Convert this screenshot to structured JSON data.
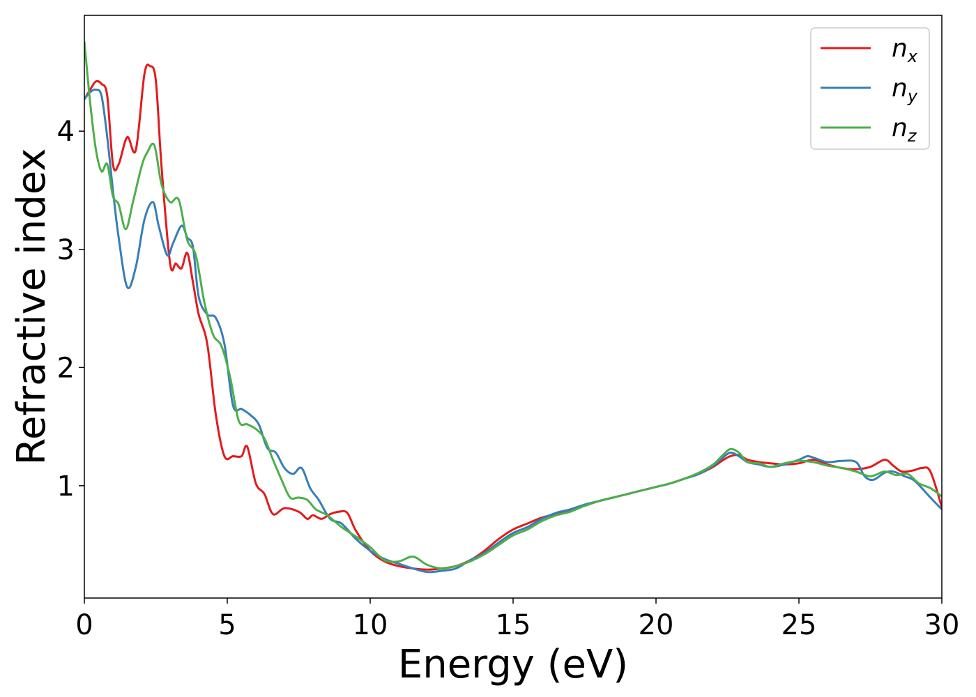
{
  "chart_data": {
    "type": "line",
    "title": "",
    "xlabel": "Energy (eV)",
    "ylabel": "Refractive index",
    "xlim": [
      0,
      30
    ],
    "ylim": [
      0.05,
      4.98
    ],
    "xticks": [
      0,
      5,
      10,
      15,
      20,
      25,
      30
    ],
    "xtick_labels": [
      "0",
      "5",
      "10",
      "15",
      "20",
      "25",
      "30"
    ],
    "yticks": [
      1,
      2,
      3,
      4
    ],
    "ytick_labels": [
      "1",
      "2",
      "3",
      "4"
    ],
    "grid": false,
    "legend_position": "top-right",
    "series": [
      {
        "name": "n",
        "subscript": "x",
        "color": "#e41a1c",
        "x": [
          0,
          0.2,
          0.4,
          0.6,
          0.8,
          1.0,
          1.2,
          1.5,
          1.8,
          2.1,
          2.3,
          2.5,
          2.7,
          3.0,
          3.2,
          3.4,
          3.6,
          3.8,
          4.0,
          4.3,
          4.6,
          4.9,
          5.2,
          5.5,
          5.7,
          6.0,
          6.3,
          6.6,
          7.0,
          7.5,
          7.8,
          8.0,
          8.3,
          8.6,
          8.9,
          9.2,
          9.5,
          10.0,
          10.5,
          11.0,
          11.5,
          12.0,
          12.5,
          13.0,
          13.5,
          14.0,
          14.5,
          15.0,
          15.5,
          16.0,
          16.5,
          17.0,
          17.5,
          18.0,
          18.5,
          19.0,
          19.5,
          20.0,
          20.5,
          21.0,
          21.5,
          22.0,
          22.3,
          22.6,
          22.9,
          23.2,
          23.6,
          24.0,
          24.5,
          25.0,
          25.5,
          26.0,
          26.5,
          27.0,
          27.5,
          28.0,
          28.3,
          28.6,
          29.0,
          29.3,
          29.6,
          30.0
        ],
        "y": [
          4.27,
          4.35,
          4.42,
          4.4,
          4.3,
          3.72,
          3.72,
          3.95,
          3.84,
          4.48,
          4.55,
          4.43,
          3.7,
          2.88,
          2.88,
          2.84,
          2.97,
          2.72,
          2.45,
          2.2,
          1.6,
          1.25,
          1.25,
          1.25,
          1.33,
          1.02,
          0.93,
          0.76,
          0.81,
          0.78,
          0.72,
          0.75,
          0.72,
          0.76,
          0.78,
          0.77,
          0.62,
          0.45,
          0.36,
          0.32,
          0.3,
          0.29,
          0.3,
          0.32,
          0.37,
          0.45,
          0.55,
          0.63,
          0.68,
          0.73,
          0.76,
          0.79,
          0.83,
          0.87,
          0.9,
          0.93,
          0.96,
          0.99,
          1.02,
          1.06,
          1.1,
          1.16,
          1.21,
          1.25,
          1.26,
          1.22,
          1.2,
          1.19,
          1.18,
          1.19,
          1.22,
          1.18,
          1.15,
          1.14,
          1.16,
          1.22,
          1.17,
          1.12,
          1.13,
          1.15,
          1.12,
          0.82
        ]
      },
      {
        "name": "n",
        "subscript": "y",
        "color": "#377eb8",
        "x": [
          0,
          0.2,
          0.4,
          0.6,
          0.8,
          1.0,
          1.2,
          1.5,
          1.8,
          2.1,
          2.4,
          2.6,
          2.9,
          3.1,
          3.4,
          3.6,
          3.8,
          4.0,
          4.3,
          4.6,
          4.9,
          5.2,
          5.5,
          5.8,
          6.1,
          6.4,
          6.7,
          7.0,
          7.3,
          7.6,
          7.9,
          8.2,
          8.6,
          9.0,
          9.5,
          10.0,
          10.5,
          11.0,
          11.5,
          12.0,
          12.5,
          13.0,
          13.5,
          14.0,
          14.5,
          15.0,
          15.5,
          16.0,
          16.5,
          17.0,
          17.5,
          18.0,
          18.5,
          19.0,
          19.5,
          20.0,
          20.5,
          21.0,
          21.5,
          22.0,
          22.3,
          22.6,
          22.9,
          23.2,
          23.6,
          24.0,
          24.5,
          25.0,
          25.3,
          25.6,
          26.0,
          26.5,
          27.0,
          27.3,
          27.6,
          28.0,
          28.3,
          28.7,
          29.0,
          29.3,
          29.6,
          30.0
        ],
        "y": [
          4.27,
          4.33,
          4.35,
          4.3,
          3.95,
          3.5,
          3.1,
          2.68,
          2.85,
          3.25,
          3.4,
          3.2,
          2.95,
          3.05,
          3.2,
          3.1,
          3.02,
          2.6,
          2.45,
          2.42,
          2.2,
          1.68,
          1.65,
          1.6,
          1.52,
          1.32,
          1.28,
          1.15,
          1.1,
          1.15,
          0.98,
          0.88,
          0.72,
          0.68,
          0.55,
          0.45,
          0.38,
          0.34,
          0.3,
          0.27,
          0.28,
          0.3,
          0.37,
          0.43,
          0.52,
          0.6,
          0.65,
          0.72,
          0.77,
          0.8,
          0.84,
          0.87,
          0.9,
          0.93,
          0.96,
          0.99,
          1.02,
          1.06,
          1.1,
          1.17,
          1.23,
          1.28,
          1.25,
          1.2,
          1.18,
          1.16,
          1.18,
          1.22,
          1.25,
          1.23,
          1.2,
          1.21,
          1.2,
          1.08,
          1.05,
          1.11,
          1.12,
          1.08,
          1.05,
          0.98,
          0.9,
          0.8
        ]
      },
      {
        "name": "n",
        "subscript": "z",
        "color": "#4daf4a",
        "x": [
          0,
          0.2,
          0.4,
          0.6,
          0.8,
          1.0,
          1.2,
          1.45,
          1.7,
          2.0,
          2.2,
          2.45,
          2.7,
          3.0,
          3.3,
          3.6,
          3.9,
          4.2,
          4.5,
          4.8,
          5.1,
          5.4,
          5.7,
          6.0,
          6.3,
          6.6,
          6.9,
          7.2,
          7.5,
          7.8,
          8.1,
          8.5,
          9.0,
          9.5,
          10.0,
          10.5,
          11.0,
          11.5,
          12.0,
          12.5,
          13.0,
          13.5,
          14.0,
          14.5,
          15.0,
          15.5,
          16.0,
          16.5,
          17.0,
          17.5,
          18.0,
          18.5,
          19.0,
          19.5,
          20.0,
          20.5,
          21.0,
          21.5,
          22.0,
          22.3,
          22.6,
          22.9,
          23.2,
          23.6,
          24.0,
          24.5,
          25.0,
          25.5,
          26.0,
          26.5,
          27.0,
          27.5,
          28.0,
          28.4,
          28.8,
          29.2,
          29.6,
          30.0
        ],
        "y": [
          4.76,
          4.25,
          3.85,
          3.66,
          3.72,
          3.45,
          3.38,
          3.17,
          3.4,
          3.7,
          3.82,
          3.88,
          3.55,
          3.4,
          3.42,
          3.08,
          2.95,
          2.55,
          2.28,
          2.18,
          1.92,
          1.55,
          1.52,
          1.48,
          1.4,
          1.22,
          1.05,
          0.9,
          0.9,
          0.88,
          0.8,
          0.75,
          0.65,
          0.57,
          0.48,
          0.37,
          0.36,
          0.4,
          0.33,
          0.3,
          0.32,
          0.36,
          0.42,
          0.5,
          0.58,
          0.63,
          0.7,
          0.75,
          0.78,
          0.83,
          0.87,
          0.9,
          0.93,
          0.96,
          0.99,
          1.02,
          1.06,
          1.11,
          1.18,
          1.25,
          1.31,
          1.28,
          1.2,
          1.19,
          1.16,
          1.19,
          1.21,
          1.2,
          1.17,
          1.15,
          1.12,
          1.08,
          1.12,
          1.09,
          1.1,
          1.02,
          0.98,
          0.91
        ]
      }
    ]
  }
}
